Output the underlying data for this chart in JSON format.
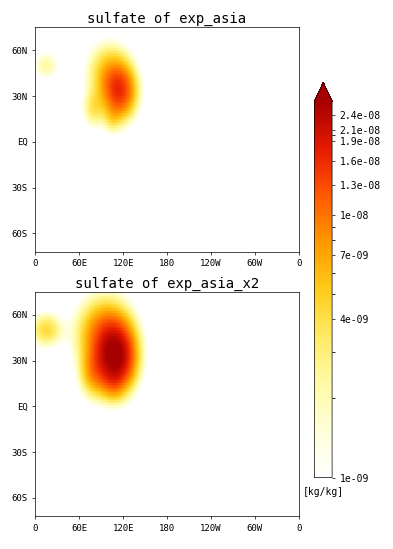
{
  "title1": "sulfate of exp_asia",
  "title2": "sulfate of exp_asia_x2",
  "colorbar_ticks": [
    1e-09,
    4e-09,
    7e-09,
    1e-08,
    1.3e-08,
    1.6e-08,
    1.9e-08,
    2.1e-08,
    2.4e-08
  ],
  "colorbar_labels": [
    "1e-09",
    "4e-09",
    "7e-09",
    "1e-08",
    "1.3e-08",
    "1.6e-08",
    "1.9e-08",
    "2.1e-08",
    "2.4e-08"
  ],
  "colorbar_unit": "[kg/kg]",
  "vmin": 1e-09,
  "vmax": 2.7e-08,
  "xticks": [
    0,
    60,
    120,
    180,
    240,
    300,
    360
  ],
  "xticklabels": [
    "0",
    "60E",
    "120E",
    "180",
    "120W",
    "60W",
    "0"
  ],
  "yticks": [
    -60,
    -30,
    0,
    30,
    60
  ],
  "yticklabels": [
    "60S",
    "30S",
    "EQ",
    "30N",
    "60N"
  ],
  "grid_color": "#aaaaaa",
  "title_fontsize": 10,
  "tick_fontsize": 6.5,
  "colorbar_fontsize": 7,
  "map_xlim": [
    0,
    360
  ],
  "map_ylim": [
    -72,
    75
  ],
  "gauss_sources1": [
    {
      "lon": 115,
      "lat": 33,
      "slon": 14,
      "slat": 11,
      "amp": 1.4e-08
    },
    {
      "lon": 100,
      "lat": 45,
      "slon": 18,
      "slat": 12,
      "amp": 5e-09
    },
    {
      "lon": 80,
      "lat": 22,
      "slon": 10,
      "slat": 8,
      "amp": 3e-09
    },
    {
      "lon": 15,
      "lat": 50,
      "slon": 12,
      "slat": 6,
      "amp": 2e-09
    },
    {
      "lon": 105,
      "lat": 15,
      "slon": 8,
      "slat": 6,
      "amp": 2e-09
    }
  ],
  "gauss_sources2": [
    {
      "lon": 110,
      "lat": 32,
      "slon": 16,
      "slat": 13,
      "amp": 2.6e-08
    },
    {
      "lon": 95,
      "lat": 47,
      "slon": 22,
      "slat": 14,
      "amp": 1e-08
    },
    {
      "lon": 80,
      "lat": 22,
      "slon": 12,
      "slat": 10,
      "amp": 6e-09
    },
    {
      "lon": 15,
      "lat": 50,
      "slon": 14,
      "slat": 7,
      "amp": 4e-09
    },
    {
      "lon": 105,
      "lat": 15,
      "slon": 10,
      "slat": 7,
      "amp": 3e-09
    }
  ],
  "background": 3e-10
}
